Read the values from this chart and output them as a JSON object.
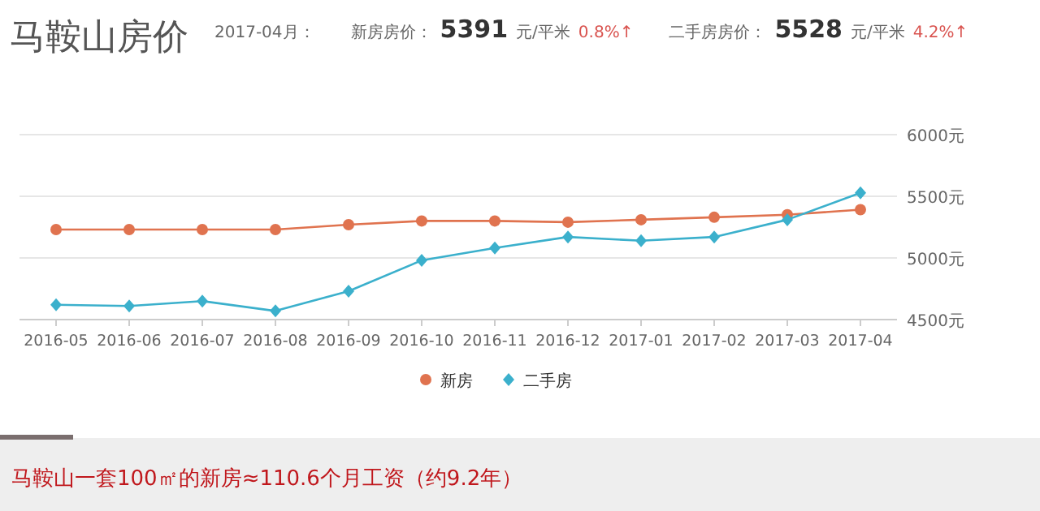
{
  "chart_data": {
    "type": "line",
    "title": "马鞍山房价",
    "annotations": [
      "2017-04月：",
      "新房房价：",
      "5391",
      "元/平米",
      "0.8%↑",
      "二手房房价：",
      "5528",
      "元/平米",
      "4.2%↑",
      "马鞍山一套100㎡的新房≈110.6个月工资（约9.2年）"
    ],
    "categories": [
      "2016-05",
      "2016-06",
      "2016-07",
      "2016-08",
      "2016-09",
      "2016-10",
      "2016-11",
      "2016-12",
      "2017-01",
      "2017-02",
      "2017-03",
      "2017-04"
    ],
    "series": [
      {
        "name": "新房",
        "color": "#e0734f",
        "marker": "circle",
        "values": [
          5230,
          5230,
          5230,
          5230,
          5270,
          5300,
          5300,
          5290,
          5310,
          5330,
          5350,
          5391
        ]
      },
      {
        "name": "二手房",
        "color": "#3bb0cc",
        "marker": "diamond",
        "values": [
          4620,
          4610,
          4650,
          4570,
          4730,
          4980,
          5080,
          5170,
          5140,
          5170,
          5310,
          5528
        ]
      }
    ],
    "ylim": [
      4500,
      6000
    ],
    "yticks": [
      {
        "value": 4500,
        "label": "4500元"
      },
      {
        "value": 5000,
        "label": "5000元"
      },
      {
        "value": 5500,
        "label": "5500元"
      },
      {
        "value": 6000,
        "label": "6000元"
      }
    ],
    "grid": "y",
    "legend": "bottom"
  }
}
